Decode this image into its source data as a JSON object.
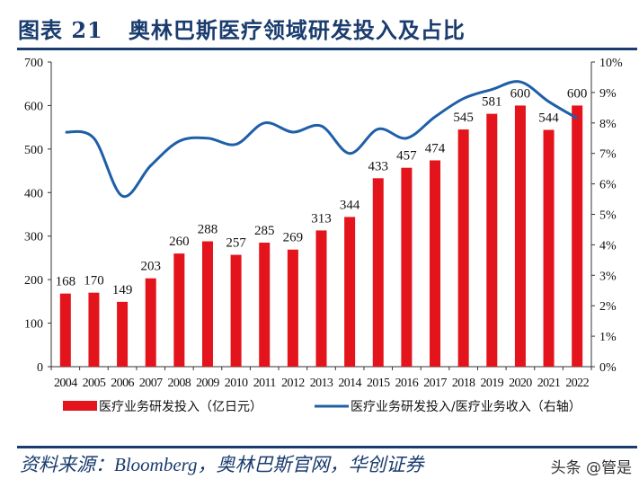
{
  "title": "图表 21   奥林巴斯医疗领域研发投入及占比",
  "source": "资料来源：Bloomberg，奥林巴斯官网，华创证券",
  "watermark": "头条 @管是",
  "chart_data": {
    "type": "bar+line",
    "categories": [
      "2004",
      "2005",
      "2006",
      "2007",
      "2008",
      "2009",
      "2010",
      "2011",
      "2012",
      "2013",
      "2014",
      "2015",
      "2016",
      "2017",
      "2018",
      "2019",
      "2020",
      "2021",
      "2022"
    ],
    "series": [
      {
        "name": "医疗业务研发投入（亿日元）",
        "type": "bar",
        "axis": "left",
        "color": "#e3141b",
        "values": [
          168,
          170,
          149,
          203,
          260,
          288,
          257,
          285,
          269,
          313,
          344,
          433,
          457,
          474,
          545,
          581,
          600,
          544,
          600
        ]
      },
      {
        "name": "医疗业务研发投入/医疗业务收入（右轴）",
        "type": "line",
        "axis": "right",
        "color": "#1f5fa8",
        "values": [
          7.7,
          7.5,
          5.6,
          6.6,
          7.4,
          7.5,
          7.3,
          8.0,
          7.7,
          7.9,
          7.0,
          7.8,
          7.5,
          8.2,
          8.8,
          9.1,
          9.35,
          8.7,
          8.15
        ]
      }
    ],
    "left_axis": {
      "ylim": [
        0,
        700
      ],
      "ticks": [
        "0",
        "100",
        "200",
        "300",
        "400",
        "500",
        "600",
        "700"
      ]
    },
    "right_axis": {
      "ylim": [
        0,
        10
      ],
      "unit": "%",
      "ticks": [
        "0%",
        "1%",
        "2%",
        "3%",
        "4%",
        "5%",
        "6%",
        "7%",
        "8%",
        "9%",
        "10%"
      ]
    },
    "grid": false,
    "legend": "bottom"
  }
}
